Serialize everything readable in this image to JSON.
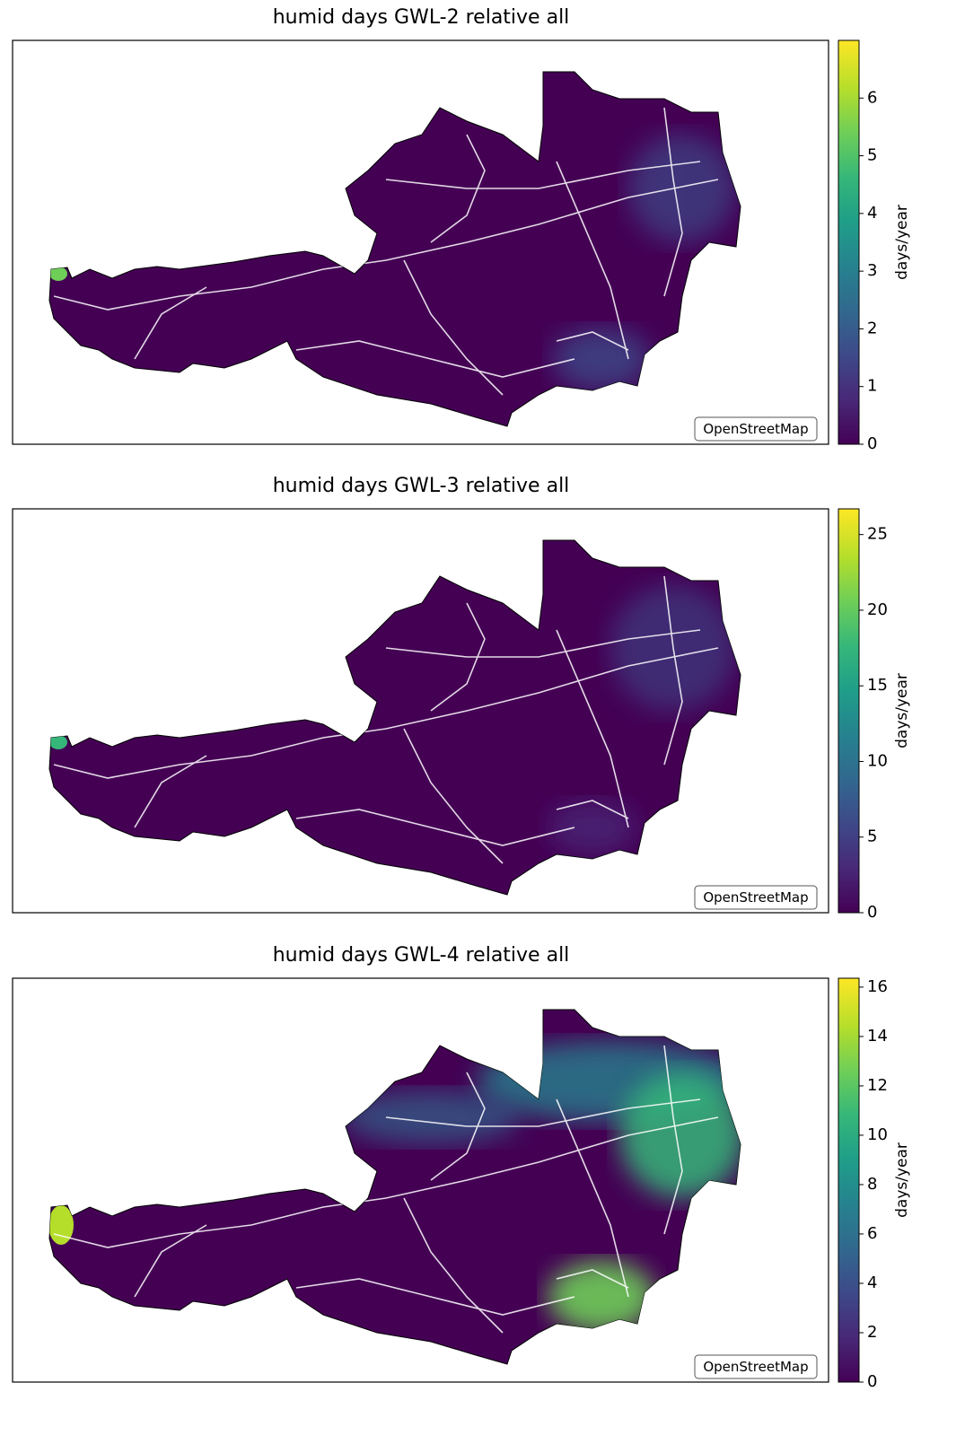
{
  "panels": [
    {
      "title": "humid days GWL-2 relative all",
      "colorbar": {
        "label": "days/year",
        "lim": [
          0,
          7
        ],
        "ticks": [
          0,
          1,
          2,
          3,
          4,
          5,
          6
        ]
      },
      "attribution": "OpenStreetMap"
    },
    {
      "title": "humid days GWL-3 relative all",
      "colorbar": {
        "label": "days/year",
        "lim": [
          0,
          26.7
        ],
        "ticks": [
          0,
          5,
          10,
          15,
          20,
          25
        ]
      },
      "attribution": "OpenStreetMap"
    },
    {
      "title": "humid days GWL-4 relative all",
      "colorbar": {
        "label": "days/year",
        "lim": [
          0,
          16.36
        ],
        "ticks": [
          0,
          2,
          4,
          6,
          8,
          10,
          12,
          14,
          16
        ]
      },
      "attribution": "OpenStreetMap"
    }
  ]
}
